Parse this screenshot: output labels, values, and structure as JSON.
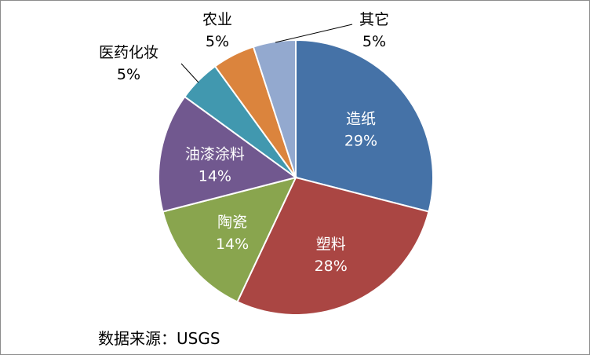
{
  "chart_data": {
    "type": "pie",
    "title": "",
    "slices": [
      {
        "label": "造纸",
        "value": 29,
        "value_label": "29%",
        "color": "#4572A7",
        "label_inside": true
      },
      {
        "label": "塑料",
        "value": 28,
        "value_label": "28%",
        "color": "#AA4643",
        "label_inside": true
      },
      {
        "label": "陶瓷",
        "value": 14,
        "value_label": "14%",
        "color": "#89A54E",
        "label_inside": true
      },
      {
        "label": "油漆涂料",
        "value": 14,
        "value_label": "14%",
        "color": "#71588F",
        "label_inside": true
      },
      {
        "label": "医药化妆",
        "value": 5,
        "value_label": "5%",
        "color": "#4198AF",
        "label_inside": false
      },
      {
        "label": "农业",
        "value": 5,
        "value_label": "5%",
        "color": "#DB843D",
        "label_inside": false
      },
      {
        "label": "其它",
        "value": 5,
        "value_label": "5%",
        "color": "#93A9CF",
        "label_inside": false
      }
    ]
  },
  "footer": {
    "source": "数据来源：USGS"
  }
}
